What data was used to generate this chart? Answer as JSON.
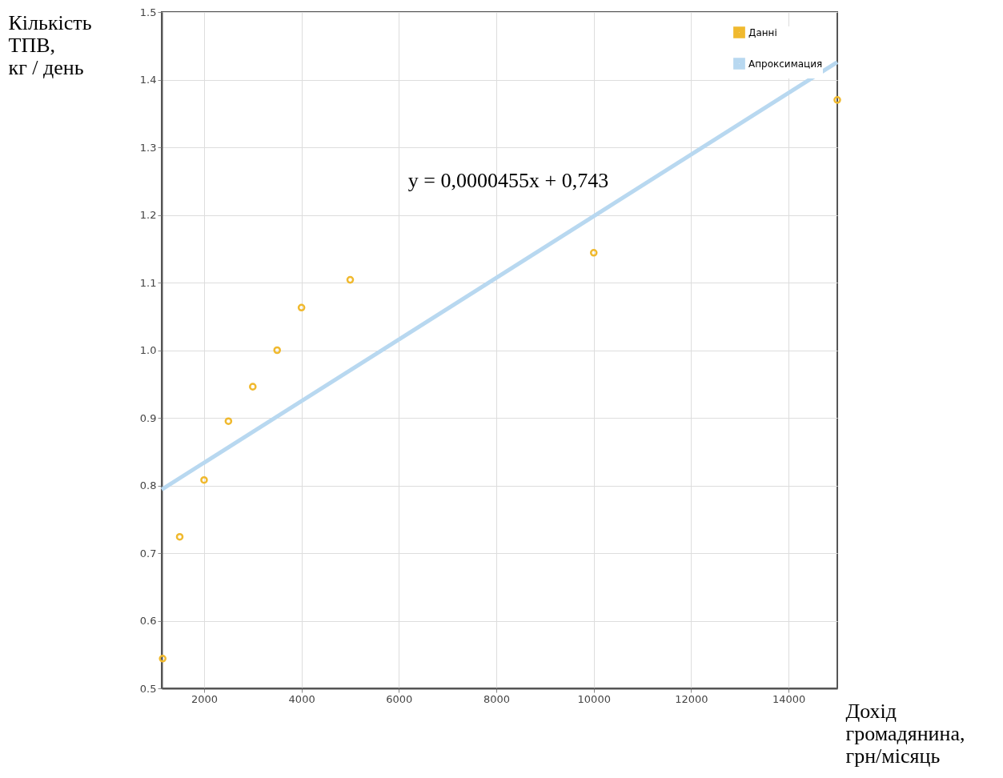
{
  "chart_data": {
    "type": "scatter",
    "xlabel": "Дохід\nгромадянина,\nгрн/місяць",
    "ylabel": "Кількість\nТПВ,\nкг / день",
    "xlim": [
      1130,
      15000
    ],
    "xticks": [
      2000,
      4000,
      6000,
      8000,
      10000,
      12000,
      14000
    ],
    "ylim": [
      0.5,
      1.5
    ],
    "yticks": [
      0.5,
      0.6,
      0.7,
      0.8,
      0.9,
      {
        "value": 1.0,
        "label": "1.0"
      },
      1.1,
      1.2,
      1.3,
      1.4,
      1.5
    ],
    "grid": true,
    "legend": "top right",
    "series": [
      {
        "name": "Данні",
        "marker": "circle",
        "color": "#f0b92e",
        "x": [
          1150,
          1500,
          2000,
          2500,
          3000,
          3500,
          4000,
          5000,
          10000,
          15000
        ],
        "values": [
          0.544,
          0.724,
          0.808,
          0.895,
          0.946,
          1.0,
          1.063,
          1.104,
          1.144,
          1.37
        ]
      },
      {
        "name": "Апроксимация",
        "type": "line",
        "line_style": "solid",
        "color": "#b8d8f0",
        "x": [
          1130,
          15000
        ],
        "values": [
          0.794,
          1.426
        ]
      }
    ],
    "annotations": [
      "y = 0,0000455x + 0,743"
    ]
  }
}
